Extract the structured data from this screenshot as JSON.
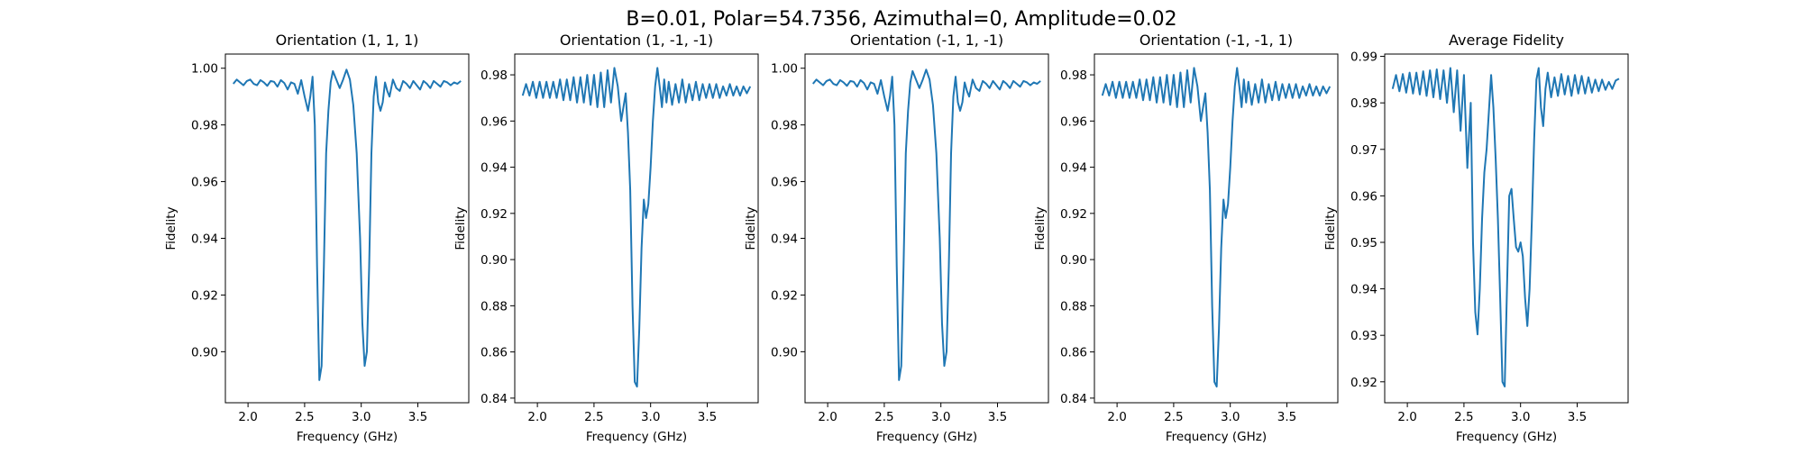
{
  "figure": {
    "suptitle": "B=0.01, Polar=54.7356, Azimuthal=0, Amplitude=0.02"
  },
  "style": {
    "line_color": "#1f77b4"
  },
  "chart_data": [
    {
      "type": "line",
      "title": "Orientation (1, 1, 1)",
      "xlabel": "Frequency (GHz)",
      "ylabel": "Fidelity",
      "xlim": [
        1.8,
        3.95
      ],
      "ylim": [
        0.882,
        1.005
      ],
      "xticks": [
        2.0,
        2.5,
        3.0,
        3.5
      ],
      "yticks": [
        0.9,
        0.92,
        0.94,
        0.96,
        0.98,
        1.0
      ],
      "ytick_format": 2,
      "grid": false,
      "series": [
        {
          "x": [
            1.87,
            1.9,
            1.93,
            1.96,
            1.99,
            2.02,
            2.05,
            2.08,
            2.11,
            2.14,
            2.17,
            2.2,
            2.23,
            2.26,
            2.29,
            2.32,
            2.35,
            2.38,
            2.41,
            2.44,
            2.47,
            2.5,
            2.53,
            2.55,
            2.57,
            2.59,
            2.61,
            2.63,
            2.65,
            2.67,
            2.69,
            2.71,
            2.73,
            2.75,
            2.78,
            2.81,
            2.84,
            2.87,
            2.9,
            2.93,
            2.96,
            2.99,
            3.01,
            3.03,
            3.05,
            3.07,
            3.09,
            3.11,
            3.13,
            3.15,
            3.17,
            3.19,
            3.21,
            3.23,
            3.25,
            3.28,
            3.31,
            3.34,
            3.37,
            3.4,
            3.43,
            3.46,
            3.49,
            3.52,
            3.55,
            3.58,
            3.61,
            3.64,
            3.67,
            3.7,
            3.73,
            3.76,
            3.79,
            3.82,
            3.85,
            3.88
          ],
          "y": [
            0.9945,
            0.996,
            0.995,
            0.994,
            0.9955,
            0.996,
            0.9945,
            0.994,
            0.9958,
            0.995,
            0.9938,
            0.9955,
            0.9952,
            0.9935,
            0.9958,
            0.9948,
            0.9925,
            0.995,
            0.9945,
            0.991,
            0.9958,
            0.99,
            0.985,
            0.99,
            0.997,
            0.98,
            0.93,
            0.89,
            0.895,
            0.93,
            0.97,
            0.985,
            0.995,
            0.999,
            0.996,
            0.993,
            0.996,
            0.9995,
            0.996,
            0.987,
            0.97,
            0.94,
            0.91,
            0.895,
            0.9,
            0.93,
            0.97,
            0.99,
            0.997,
            0.988,
            0.985,
            0.988,
            0.995,
            0.992,
            0.99,
            0.996,
            0.993,
            0.992,
            0.9955,
            0.9945,
            0.993,
            0.9955,
            0.994,
            0.9925,
            0.9955,
            0.9945,
            0.993,
            0.9955,
            0.9945,
            0.9935,
            0.9955,
            0.995,
            0.994,
            0.995,
            0.9945,
            0.9955
          ]
        }
      ]
    },
    {
      "type": "line",
      "title": "Orientation (1, -1, -1)",
      "xlabel": "Frequency (GHz)",
      "ylabel": "Fidelity",
      "xlim": [
        1.8,
        3.95
      ],
      "ylim": [
        0.838,
        0.989
      ],
      "xticks": [
        2.0,
        2.5,
        3.0,
        3.5
      ],
      "yticks": [
        0.84,
        0.86,
        0.88,
        0.9,
        0.92,
        0.94,
        0.96,
        0.98
      ],
      "ytick_format": 2,
      "grid": false,
      "series": [
        {
          "x": [
            1.87,
            1.9,
            1.93,
            1.96,
            1.99,
            2.02,
            2.05,
            2.08,
            2.11,
            2.14,
            2.17,
            2.2,
            2.23,
            2.26,
            2.29,
            2.32,
            2.35,
            2.38,
            2.41,
            2.44,
            2.47,
            2.5,
            2.53,
            2.56,
            2.59,
            2.62,
            2.65,
            2.68,
            2.71,
            2.74,
            2.76,
            2.78,
            2.8,
            2.82,
            2.84,
            2.86,
            2.88,
            2.9,
            2.92,
            2.94,
            2.96,
            2.98,
            3.0,
            3.02,
            3.04,
            3.06,
            3.08,
            3.1,
            3.12,
            3.14,
            3.16,
            3.19,
            3.22,
            3.25,
            3.28,
            3.31,
            3.34,
            3.37,
            3.4,
            3.43,
            3.46,
            3.49,
            3.52,
            3.55,
            3.58,
            3.61,
            3.64,
            3.67,
            3.7,
            3.73,
            3.76,
            3.79,
            3.82,
            3.85,
            3.88
          ],
          "y": [
            0.971,
            0.976,
            0.971,
            0.977,
            0.97,
            0.977,
            0.97,
            0.977,
            0.97,
            0.977,
            0.97,
            0.978,
            0.969,
            0.978,
            0.969,
            0.979,
            0.968,
            0.979,
            0.968,
            0.98,
            0.967,
            0.98,
            0.966,
            0.981,
            0.966,
            0.982,
            0.968,
            0.983,
            0.975,
            0.96,
            0.966,
            0.972,
            0.955,
            0.93,
            0.88,
            0.847,
            0.845,
            0.87,
            0.905,
            0.926,
            0.918,
            0.924,
            0.94,
            0.96,
            0.975,
            0.983,
            0.975,
            0.966,
            0.978,
            0.968,
            0.977,
            0.967,
            0.976,
            0.968,
            0.978,
            0.968,
            0.976,
            0.969,
            0.977,
            0.969,
            0.976,
            0.97,
            0.976,
            0.97,
            0.976,
            0.97,
            0.975,
            0.971,
            0.976,
            0.971,
            0.975,
            0.971,
            0.975,
            0.972,
            0.975
          ]
        }
      ]
    },
    {
      "type": "line",
      "title": "Orientation (-1, 1, -1)",
      "xlabel": "Frequency (GHz)",
      "ylabel": "Fidelity",
      "xlim": [
        1.8,
        3.95
      ],
      "ylim": [
        0.882,
        1.005
      ],
      "xticks": [
        2.0,
        2.5,
        3.0,
        3.5
      ],
      "yticks": [
        0.9,
        0.92,
        0.94,
        0.96,
        0.98,
        1.0
      ],
      "ytick_format": 2,
      "grid": false,
      "series": [
        {
          "x": [
            1.87,
            1.9,
            1.93,
            1.96,
            1.99,
            2.02,
            2.05,
            2.08,
            2.11,
            2.14,
            2.17,
            2.2,
            2.23,
            2.26,
            2.29,
            2.32,
            2.35,
            2.38,
            2.41,
            2.44,
            2.47,
            2.5,
            2.53,
            2.55,
            2.57,
            2.59,
            2.61,
            2.63,
            2.65,
            2.67,
            2.69,
            2.71,
            2.73,
            2.75,
            2.78,
            2.81,
            2.84,
            2.87,
            2.9,
            2.93,
            2.96,
            2.99,
            3.01,
            3.03,
            3.05,
            3.07,
            3.09,
            3.11,
            3.13,
            3.15,
            3.17,
            3.19,
            3.21,
            3.23,
            3.25,
            3.28,
            3.31,
            3.34,
            3.37,
            3.4,
            3.43,
            3.46,
            3.49,
            3.52,
            3.55,
            3.58,
            3.61,
            3.64,
            3.67,
            3.7,
            3.73,
            3.76,
            3.79,
            3.82,
            3.85,
            3.88
          ],
          "y": [
            0.9945,
            0.996,
            0.995,
            0.994,
            0.9955,
            0.996,
            0.9945,
            0.994,
            0.9958,
            0.995,
            0.9938,
            0.9955,
            0.9952,
            0.9935,
            0.9958,
            0.9948,
            0.9925,
            0.995,
            0.9945,
            0.991,
            0.9958,
            0.99,
            0.985,
            0.99,
            0.997,
            0.98,
            0.93,
            0.89,
            0.895,
            0.93,
            0.97,
            0.985,
            0.995,
            0.999,
            0.996,
            0.993,
            0.996,
            0.9995,
            0.996,
            0.987,
            0.97,
            0.94,
            0.91,
            0.895,
            0.9,
            0.93,
            0.97,
            0.99,
            0.997,
            0.988,
            0.985,
            0.988,
            0.995,
            0.992,
            0.99,
            0.996,
            0.993,
            0.992,
            0.9955,
            0.9945,
            0.993,
            0.9955,
            0.994,
            0.9925,
            0.9955,
            0.9945,
            0.993,
            0.9955,
            0.9945,
            0.9935,
            0.9955,
            0.995,
            0.994,
            0.995,
            0.9945,
            0.9955
          ]
        }
      ]
    },
    {
      "type": "line",
      "title": "Orientation (-1, -1, 1)",
      "xlabel": "Frequency (GHz)",
      "ylabel": "Fidelity",
      "xlim": [
        1.8,
        3.95
      ],
      "ylim": [
        0.838,
        0.989
      ],
      "xticks": [
        2.0,
        2.5,
        3.0,
        3.5
      ],
      "yticks": [
        0.84,
        0.86,
        0.88,
        0.9,
        0.92,
        0.94,
        0.96,
        0.98
      ],
      "ytick_format": 2,
      "grid": false,
      "series": [
        {
          "x": [
            1.87,
            1.9,
            1.93,
            1.96,
            1.99,
            2.02,
            2.05,
            2.08,
            2.11,
            2.14,
            2.17,
            2.2,
            2.23,
            2.26,
            2.29,
            2.32,
            2.35,
            2.38,
            2.41,
            2.44,
            2.47,
            2.5,
            2.53,
            2.56,
            2.59,
            2.62,
            2.65,
            2.68,
            2.71,
            2.74,
            2.76,
            2.78,
            2.8,
            2.82,
            2.84,
            2.86,
            2.88,
            2.9,
            2.92,
            2.94,
            2.96,
            2.98,
            3.0,
            3.02,
            3.04,
            3.06,
            3.08,
            3.1,
            3.12,
            3.14,
            3.16,
            3.19,
            3.22,
            3.25,
            3.28,
            3.31,
            3.34,
            3.37,
            3.4,
            3.43,
            3.46,
            3.49,
            3.52,
            3.55,
            3.58,
            3.61,
            3.64,
            3.67,
            3.7,
            3.73,
            3.76,
            3.79,
            3.82,
            3.85,
            3.88
          ],
          "y": [
            0.971,
            0.976,
            0.971,
            0.977,
            0.97,
            0.977,
            0.97,
            0.977,
            0.97,
            0.977,
            0.97,
            0.978,
            0.969,
            0.978,
            0.969,
            0.979,
            0.968,
            0.979,
            0.968,
            0.98,
            0.967,
            0.98,
            0.966,
            0.981,
            0.966,
            0.982,
            0.968,
            0.983,
            0.975,
            0.96,
            0.966,
            0.972,
            0.955,
            0.93,
            0.88,
            0.847,
            0.845,
            0.87,
            0.905,
            0.926,
            0.918,
            0.924,
            0.94,
            0.96,
            0.975,
            0.983,
            0.975,
            0.966,
            0.978,
            0.968,
            0.977,
            0.967,
            0.976,
            0.968,
            0.978,
            0.968,
            0.976,
            0.969,
            0.977,
            0.969,
            0.976,
            0.97,
            0.976,
            0.97,
            0.976,
            0.97,
            0.975,
            0.971,
            0.976,
            0.971,
            0.975,
            0.971,
            0.975,
            0.972,
            0.975
          ]
        }
      ]
    },
    {
      "type": "line",
      "title": "Average Fidelity",
      "xlabel": "Frequency (GHz)",
      "ylabel": "Fidelity",
      "xlim": [
        1.8,
        3.95
      ],
      "ylim": [
        0.9155,
        0.9905
      ],
      "xticks": [
        2.0,
        2.5,
        3.0,
        3.5
      ],
      "yticks": [
        0.92,
        0.93,
        0.94,
        0.95,
        0.96,
        0.97,
        0.98,
        0.99
      ],
      "ytick_format": 2,
      "grid": false,
      "series": [
        {
          "x": [
            1.87,
            1.9,
            1.93,
            1.96,
            1.99,
            2.02,
            2.05,
            2.08,
            2.11,
            2.14,
            2.17,
            2.2,
            2.23,
            2.26,
            2.29,
            2.32,
            2.35,
            2.38,
            2.41,
            2.44,
            2.47,
            2.5,
            2.53,
            2.56,
            2.58,
            2.6,
            2.62,
            2.64,
            2.66,
            2.68,
            2.7,
            2.72,
            2.74,
            2.76,
            2.78,
            2.8,
            2.82,
            2.84,
            2.86,
            2.88,
            2.9,
            2.92,
            2.94,
            2.96,
            2.98,
            3.0,
            3.02,
            3.04,
            3.06,
            3.08,
            3.1,
            3.12,
            3.14,
            3.16,
            3.18,
            3.2,
            3.22,
            3.24,
            3.27,
            3.3,
            3.33,
            3.36,
            3.39,
            3.42,
            3.45,
            3.48,
            3.51,
            3.54,
            3.57,
            3.6,
            3.63,
            3.66,
            3.69,
            3.72,
            3.75,
            3.78,
            3.81,
            3.84,
            3.87
          ],
          "y": [
            0.983,
            0.986,
            0.9825,
            0.9862,
            0.9822,
            0.9865,
            0.982,
            0.9865,
            0.9818,
            0.9868,
            0.9815,
            0.987,
            0.9812,
            0.9872,
            0.9808,
            0.987,
            0.98,
            0.9875,
            0.978,
            0.987,
            0.974,
            0.986,
            0.966,
            0.98,
            0.95,
            0.935,
            0.9302,
            0.94,
            0.955,
            0.965,
            0.97,
            0.978,
            0.986,
            0.979,
            0.968,
            0.955,
            0.938,
            0.92,
            0.919,
            0.94,
            0.96,
            0.9615,
            0.955,
            0.949,
            0.948,
            0.95,
            0.947,
            0.938,
            0.932,
            0.94,
            0.955,
            0.972,
            0.985,
            0.9875,
            0.979,
            0.975,
            0.983,
            0.9865,
            0.9812,
            0.9855,
            0.9815,
            0.9862,
            0.9818,
            0.9858,
            0.9815,
            0.986,
            0.982,
            0.9858,
            0.982,
            0.9855,
            0.9822,
            0.985,
            0.9825,
            0.985,
            0.9828,
            0.9845,
            0.983,
            0.9848,
            0.9852
          ]
        }
      ]
    }
  ]
}
